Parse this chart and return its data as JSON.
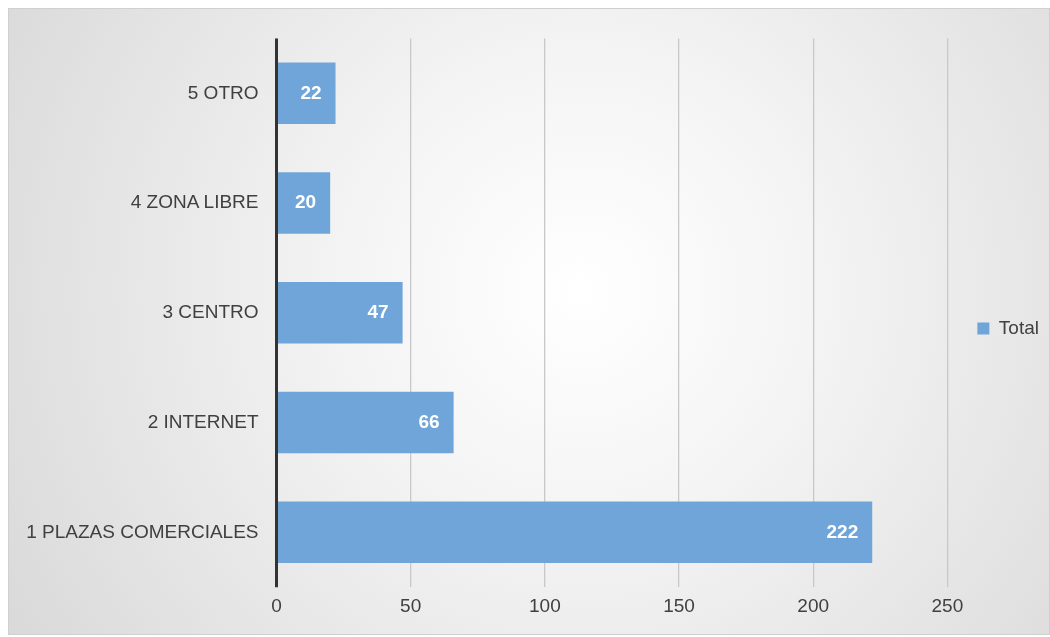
{
  "chart_data": {
    "type": "bar",
    "orientation": "horizontal",
    "categories": [
      "5 OTRO",
      "4 ZONA LIBRE",
      "3 CENTRO",
      "2 INTERNET",
      "1 PLAZAS COMERCIALES"
    ],
    "series": [
      {
        "name": "Total",
        "color": "#70a5da",
        "values": [
          22,
          20,
          47,
          66,
          222
        ]
      }
    ],
    "xlim": [
      0,
      250
    ],
    "xticks": [
      0,
      50,
      100,
      150,
      200,
      250
    ],
    "grid": "x",
    "legend": "right",
    "data_labels": true
  }
}
